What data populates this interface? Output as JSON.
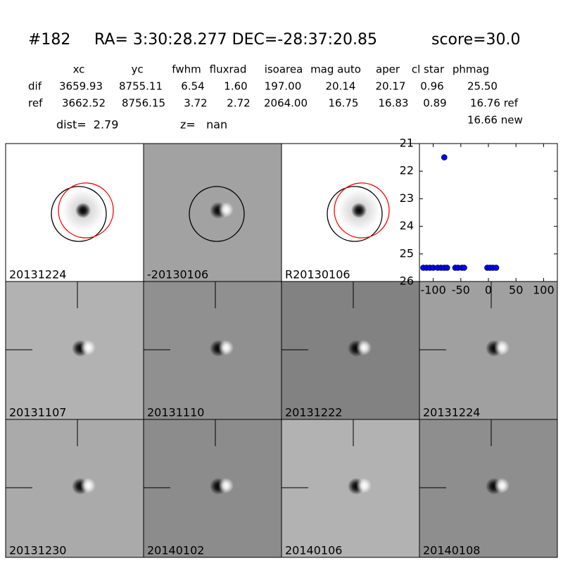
{
  "header": {
    "id": "#182",
    "coords": "RA= 3:30:28.277 DEC=-28:37:20.85",
    "score": "score=30.0"
  },
  "table": {
    "columns": [
      "xc",
      "yc",
      "fwhm",
      "fluxrad",
      "isoarea",
      "mag auto",
      "aper",
      "cl star",
      "phmag"
    ],
    "rows": [
      {
        "label": "dif",
        "cells": [
          "3659.93",
          "8755.11",
          "6.54",
          "1.60",
          "197.00",
          "20.14",
          "20.17",
          "0.96",
          "25.50"
        ]
      },
      {
        "label": "ref",
        "cells": [
          "3662.52",
          "8756.15",
          "3.72",
          "2.72",
          "2064.00",
          "16.75",
          "16.83",
          "0.89",
          "16.76 ref"
        ]
      }
    ],
    "extra": "16.66 new"
  },
  "summary": {
    "dist": "dist=  2.79",
    "z": "z=   nan"
  },
  "panels": [
    {
      "label": "20131224"
    },
    {
      "label": "-20130106"
    },
    {
      "label": "R20130106"
    },
    {
      "label": "20131107"
    },
    {
      "label": "20131110"
    },
    {
      "label": "20131222"
    },
    {
      "label": "20131224",
      "color": "#ff0000"
    },
    {
      "label": "20131230"
    },
    {
      "label": "20140102"
    },
    {
      "label": "20140106"
    },
    {
      "label": "20140108"
    }
  ],
  "chart_data": {
    "type": "scatter",
    "color": "#0000ff",
    "x": [
      -118,
      -112,
      -106,
      -100,
      -92,
      -86,
      -80,
      -75,
      -60,
      -55,
      -48,
      -44,
      -2,
      3,
      8,
      14,
      -80
    ],
    "y": [
      25.5,
      25.5,
      25.5,
      25.5,
      25.5,
      25.5,
      25.5,
      25.5,
      25.5,
      25.5,
      25.5,
      25.5,
      25.5,
      25.5,
      25.5,
      25.5,
      21.5
    ],
    "xlim": [
      -125,
      125
    ],
    "ylim": [
      26,
      21
    ],
    "xticks": [
      -100,
      -50,
      0,
      50,
      100
    ],
    "yticks": [
      21,
      22,
      23,
      24,
      25,
      26
    ]
  }
}
